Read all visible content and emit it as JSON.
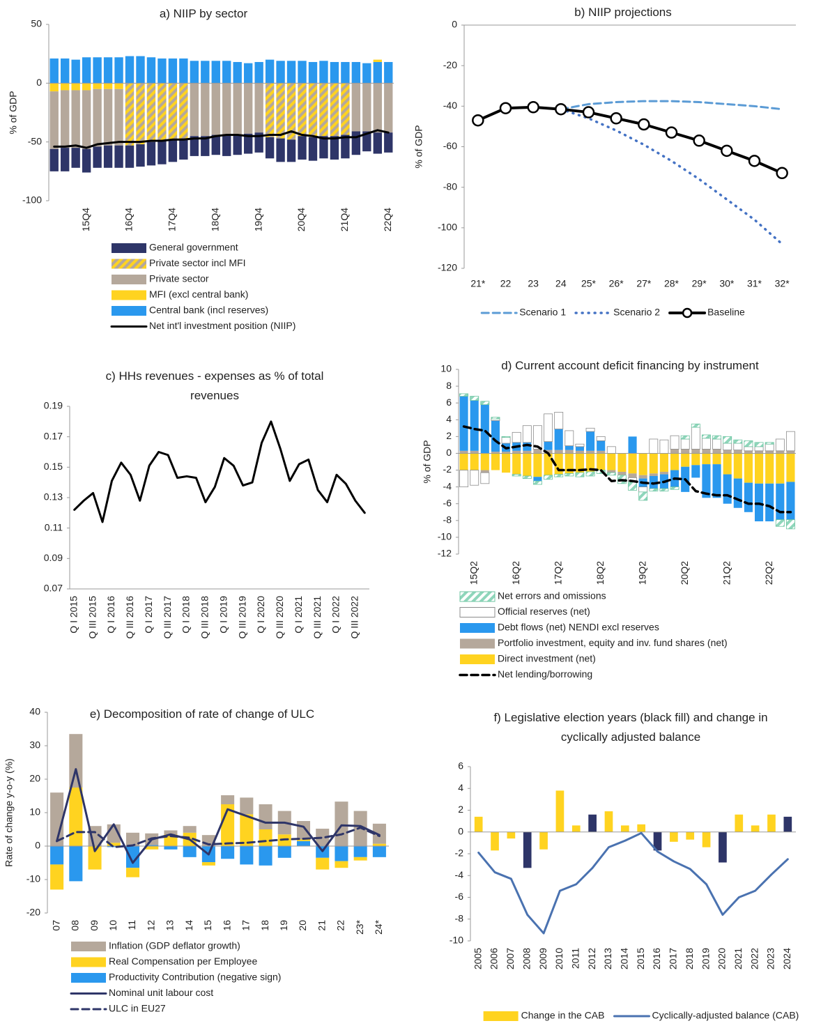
{
  "chart_data": [
    {
      "type": "bar",
      "title": "a) NIIP by sector",
      "y_label": "% of GDP",
      "categories": [
        null,
        null,
        null,
        "15Q4",
        null,
        null,
        null,
        "16Q4",
        null,
        null,
        null,
        "17Q4",
        null,
        null,
        null,
        "18Q4",
        null,
        null,
        null,
        "19Q4",
        null,
        null,
        null,
        "20Q4",
        null,
        null,
        null,
        "21Q4",
        null,
        null,
        null,
        "22Q4"
      ],
      "ylim": [
        -100,
        50
      ],
      "yticks": [
        -100,
        -50,
        0,
        50
      ],
      "series": [
        {
          "name": "General government",
          "type": "bar",
          "color": "#2e3568",
          "values": [
            -19,
            -20,
            -17,
            -20,
            -18,
            -19,
            -19,
            -19,
            -19,
            -20,
            -20,
            -19,
            -18,
            -17,
            -17,
            -17,
            -18,
            -17,
            -17,
            -17,
            -18,
            -20,
            -19,
            -20,
            -20,
            -19,
            -20,
            -20,
            -20,
            -17,
            -18,
            -17
          ]
        },
        {
          "name": "Private sector incl MFI",
          "type": "bar",
          "color": "#b5a89b",
          "hatch_color": "#ffd320",
          "values": [
            null,
            null,
            null,
            null,
            null,
            null,
            null,
            -53,
            -52,
            -50,
            -49,
            -48,
            -47,
            null,
            null,
            null,
            null,
            null,
            null,
            null,
            -46,
            -47,
            -48,
            -45,
            -46,
            -45,
            -45,
            -44,
            null,
            null,
            null,
            null
          ]
        },
        {
          "name": "Private sector",
          "type": "bar",
          "color": "#b5a89b",
          "values": [
            -49,
            -49,
            -49,
            -50,
            -49,
            -48,
            -48,
            null,
            null,
            null,
            null,
            null,
            null,
            -45,
            -45,
            -44,
            -44,
            -44,
            -43,
            -42,
            null,
            null,
            null,
            null,
            null,
            null,
            null,
            null,
            -41,
            -41,
            -42,
            -42
          ]
        },
        {
          "name": "MFI (excl central bank)",
          "type": "bar",
          "color": "#ffd320",
          "values": [
            -7,
            -6,
            -6,
            -6,
            -5,
            -5,
            -5,
            null,
            null,
            null,
            null,
            null,
            null,
            null,
            null,
            null,
            null,
            null,
            null,
            null,
            null,
            null,
            null,
            null,
            null,
            null,
            null,
            null,
            null,
            null,
            2,
            null
          ]
        },
        {
          "name": "Central bank (incl reserves)",
          "type": "bar",
          "color": "#2a98ee",
          "values": [
            21,
            21,
            20,
            22,
            22,
            22,
            22,
            23,
            23,
            22,
            21,
            21,
            21,
            19,
            19,
            19,
            19,
            18,
            17,
            18,
            20,
            19,
            19,
            19,
            18,
            19,
            18,
            18,
            18,
            17,
            18,
            18
          ]
        },
        {
          "name": "Net int'l investment position (NIIP)",
          "type": "line",
          "color": "#000000",
          "line_width": 3,
          "values": [
            -54,
            -54,
            -53,
            -55,
            -52,
            -51,
            -50,
            -50,
            -50,
            -49,
            -49,
            -48,
            -48,
            -47,
            -47,
            -45,
            -44,
            -44,
            -45,
            -45,
            -44,
            -44,
            -41,
            -44,
            -45,
            -47,
            -47,
            -46,
            -46,
            -43,
            -40,
            -42
          ]
        }
      ]
    },
    {
      "type": "line",
      "title": "b) NIIP projections",
      "y_label": "% of GDP",
      "categories": [
        "21*",
        "22",
        "23",
        "24",
        "25*",
        "26*",
        "27*",
        "28*",
        "29*",
        "30*",
        "31*",
        "32*"
      ],
      "ylim": [
        -120,
        0
      ],
      "yticks": [
        -120,
        -100,
        -80,
        -60,
        -40,
        -20,
        0
      ],
      "series": [
        {
          "name": "Scenario 1",
          "type": "line",
          "color": "#5b9bd5",
          "dash": "dashed",
          "line_width": 3,
          "values": [
            null,
            null,
            null,
            -41.5,
            -39,
            -38,
            -37.5,
            -37.5,
            -38,
            -39,
            -40,
            -41.5
          ]
        },
        {
          "name": "Scenario 2",
          "type": "line",
          "color": "#4472c4",
          "dash": "dotted",
          "line_width": 3.5,
          "values": [
            null,
            null,
            null,
            -41.5,
            -46,
            -52,
            -59,
            -67,
            -76,
            -86,
            -96,
            -108
          ]
        },
        {
          "name": "Baseline",
          "type": "line",
          "color": "#000000",
          "line_width": 4,
          "markers": true,
          "values": [
            -47,
            -41,
            -40.5,
            -41.5,
            -43,
            -46,
            -49,
            -53,
            -57,
            -62,
            -67,
            -73
          ]
        }
      ]
    },
    {
      "type": "line",
      "title": "c) HHs revenues - expenses as % of total revenues",
      "categories": [
        "Q I 2015",
        null,
        "Q III 2015",
        null,
        "Q I 2016",
        null,
        "Q III 2016",
        null,
        "Q I 2017",
        null,
        "Q III 2017",
        null,
        "Q I 2018",
        null,
        "Q III 2018",
        null,
        "Q I 2019",
        null,
        "Q III 2019",
        null,
        "Q I 2020",
        null,
        "Q III 2020",
        null,
        "Q I 2021",
        null,
        "Q III 2021",
        null,
        "Q I 2022",
        null,
        "Q III 2022",
        null
      ],
      "ylim": [
        0.07,
        0.19
      ],
      "yticks": [
        0.07,
        0.09,
        0.11,
        0.13,
        0.15,
        0.17,
        0.19
      ],
      "series": [
        {
          "type": "line",
          "color": "#000000",
          "line_width": 3,
          "values": [
            0.122,
            0.128,
            0.133,
            0.114,
            0.141,
            0.153,
            0.145,
            0.128,
            0.151,
            0.16,
            0.158,
            0.143,
            0.144,
            0.143,
            0.127,
            0.137,
            0.156,
            0.151,
            0.138,
            0.14,
            0.166,
            0.18,
            0.162,
            0.141,
            0.152,
            0.155,
            0.135,
            0.127,
            0.145,
            0.139,
            0.128,
            0.12
          ]
        }
      ]
    },
    {
      "type": "bar",
      "title": "d) Current account deficit financing by instrument",
      "y_label": "% of GDP",
      "categories": [
        null,
        "15Q2",
        null,
        null,
        null,
        "16Q2",
        null,
        null,
        null,
        "17Q2",
        null,
        null,
        null,
        "18Q2",
        null,
        null,
        null,
        "19Q2",
        null,
        null,
        null,
        "20Q2",
        null,
        null,
        null,
        "21Q2",
        null,
        null,
        null,
        "22Q2",
        null,
        null
      ],
      "ylim": [
        -12,
        10
      ],
      "yticks": [
        -12,
        -10,
        -8,
        -6,
        -4,
        -2,
        0,
        2,
        4,
        6,
        8,
        10
      ],
      "series": [
        {
          "name": "Net errors and omissions",
          "type": "bar",
          "color": "#ffffff",
          "hatch_color": "#8fd6bb",
          "stroke": "#6cc4a0",
          "values": [
            0.3,
            0.5,
            0.4,
            0.2,
            0.1,
            -0.2,
            -0.3,
            -0.4,
            -0.5,
            -0.3,
            -0.3,
            -0.5,
            -0.5,
            -0.4,
            -0.3,
            -1,
            -1,
            -1,
            -0.3,
            -0.3,
            -0.3,
            0.4,
            0.4,
            0.4,
            0.4,
            0.8,
            0.4,
            0.7,
            0.5,
            0.2,
            -0.8,
            -1.1
          ]
        },
        {
          "name": "Official reserves (net)",
          "type": "bar",
          "color": "#ffffff",
          "stroke": "#8c8c8c",
          "values": [
            -2,
            -1.8,
            -1.3,
            0.2,
            0.7,
            1.2,
            2,
            2.8,
            3.3,
            2,
            1.8,
            0.3,
            0.4,
            0.5,
            0.8,
            0,
            -0.5,
            -0.6,
            1.7,
            1.6,
            1.6,
            1.2,
            2.6,
            1.3,
            1.2,
            0.8,
            0.8,
            0.5,
            0.5,
            0.8,
            1.4,
            2.3
          ]
        },
        {
          "name": "Debt flows (net) NENDI excl reserves",
          "type": "bar",
          "color": "#2a98ee",
          "values": [
            6.5,
            6,
            5.8,
            3.7,
            1,
            1,
            1,
            -0.5,
            1,
            2.5,
            0.5,
            0.5,
            2.3,
            1.2,
            0,
            0,
            2,
            -1,
            -1.5,
            -1.7,
            -2,
            -3,
            -1.5,
            -4,
            -4,
            -3.5,
            -3.5,
            -3.5,
            -4.5,
            -4.5,
            -4.3,
            -4.5
          ]
        },
        {
          "name": "Portfolio investment, equity and inv. fund shares (net)",
          "type": "bar",
          "color": "#b5a89b",
          "values": [
            0.3,
            0.3,
            -0.3,
            0.2,
            0.2,
            0.3,
            0.3,
            0.5,
            0.4,
            0.4,
            0.4,
            0.3,
            0.3,
            0.3,
            -0.3,
            -0.4,
            -0.5,
            -0.4,
            -0.3,
            -0.3,
            0.5,
            0.5,
            0.5,
            0.5,
            0.5,
            0.4,
            0.4,
            0.3,
            0.3,
            0.3,
            0.3,
            0.3
          ]
        },
        {
          "name": "Direct investment (net)",
          "type": "bar",
          "color": "#ffd320",
          "values": [
            -2,
            -2,
            -2,
            -2,
            -2.3,
            -2.5,
            -2.7,
            -2.8,
            -2.6,
            -2.5,
            -2.4,
            -2.3,
            -2.2,
            -2,
            -2,
            -2.2,
            -2.4,
            -2.6,
            -2.4,
            -2.2,
            -2,
            -1.6,
            -1.4,
            -1.3,
            -1.3,
            -2.5,
            -3,
            -3.5,
            -3.6,
            -3.6,
            -3.6,
            -3.4
          ]
        },
        {
          "name": "Net lending/borrowing",
          "type": "line",
          "color": "#000000",
          "dash": "dashed",
          "line_width": 3.5,
          "values": [
            3.2,
            2.9,
            2.7,
            1.5,
            0.6,
            0.8,
            1,
            0.8,
            0,
            -2,
            -2,
            -2,
            -1.9,
            -2,
            -3.3,
            -3.2,
            -3.3,
            -3.5,
            -3.6,
            -3.4,
            -3,
            -3.1,
            -4.5,
            -4.8,
            -5,
            -5,
            -5.5,
            -6,
            -6,
            -6.3,
            -7,
            -7
          ]
        }
      ]
    },
    {
      "type": "bar",
      "title": "e) Decomposition of rate of change of ULC",
      "y_label": "Rate of change y-o-y (%)",
      "categories": [
        "07",
        "08",
        "09",
        "10",
        "11",
        "12",
        "13",
        "14",
        "15",
        "16",
        "17",
        "18",
        "19",
        "20",
        "21",
        "22",
        "23*",
        "24*"
      ],
      "ylim": [
        -20,
        40
      ],
      "yticks": [
        -20,
        -10,
        0,
        10,
        20,
        30,
        40
      ],
      "series": [
        {
          "name": "Inflation (GDP deflator growth)",
          "type": "bar",
          "color": "#b5a89b",
          "values": [
            16,
            16,
            6,
            5.5,
            4,
            3.5,
            1.2,
            2,
            3.3,
            2.7,
            5,
            7.5,
            7,
            5.5,
            5.2,
            13.3,
            10.5,
            6
          ]
        },
        {
          "name": "Real Compensation per Employee",
          "type": "bar",
          "color": "#ffd320",
          "values": [
            -7.5,
            17.5,
            -7,
            1,
            -2.8,
            -1,
            3.5,
            4,
            -1,
            12.5,
            9.5,
            5,
            3.5,
            0.5,
            -3.5,
            -2,
            -1,
            0.7
          ]
        },
        {
          "name": "Productivity Contribution (negative sign)",
          "type": "bar",
          "color": "#2a98ee",
          "values": [
            -5.5,
            -10.5,
            0,
            -0.3,
            -6.5,
            0.3,
            -1,
            -3.3,
            -4.8,
            -3.8,
            -5.5,
            -5.8,
            -3.5,
            1.5,
            -3.5,
            -4.5,
            -3.3,
            -3.3
          ]
        },
        {
          "name": "Nominal unit labour cost",
          "type": "line",
          "color": "#2e3568",
          "line_width": 3,
          "values": [
            1.5,
            23,
            -1.5,
            6.5,
            -5,
            2,
            3.5,
            2,
            -2.5,
            11,
            9,
            7,
            7,
            5.8,
            -1.5,
            6.2,
            6,
            3.3
          ]
        },
        {
          "name": "ULC in EU27",
          "type": "line",
          "color": "#2e3568",
          "dash": "dashed",
          "line_width": 3,
          "values": [
            1.5,
            4.2,
            4.2,
            -0.3,
            0.2,
            2.3,
            3,
            2.5,
            0.5,
            0.8,
            1,
            1.5,
            2,
            2.2,
            2.5,
            3.5,
            5.5,
            3
          ]
        }
      ]
    },
    {
      "type": "bar",
      "title": "f) Legislative election years (black fill) and change in cyclically adjusted balance",
      "categories": [
        "2005",
        "2006",
        "2007",
        "2008",
        "2009",
        "2010",
        "2011",
        "2012",
        "2013",
        "2014",
        "2015",
        "2016",
        "2017",
        "2018",
        "2019",
        "2020",
        "2021",
        "2022",
        "2023",
        "2024"
      ],
      "ylim": [
        -10,
        6
      ],
      "yticks": [
        -10,
        -8,
        -6,
        -4,
        -2,
        0,
        2,
        4,
        6
      ],
      "series": [
        {
          "name": "Change in the CAB",
          "type": "bar",
          "color": "#ffd320",
          "colors": [
            "#ffd320",
            "#ffd320",
            "#ffd320",
            "#2e3568",
            "#ffd320",
            "#ffd320",
            "#ffd320",
            "#2e3568",
            "#ffd320",
            "#ffd320",
            "#ffd320",
            "#2e3568",
            "#ffd320",
            "#ffd320",
            "#ffd320",
            "#2e3568",
            "#ffd320",
            "#ffd320",
            "#ffd320",
            "#2e3568"
          ],
          "values": [
            1.4,
            -1.7,
            -0.6,
            -3.3,
            -1.6,
            3.8,
            0.6,
            1.6,
            1.9,
            0.6,
            0.7,
            -1.7,
            -0.9,
            -0.7,
            -1.4,
            -2.8,
            1.6,
            0.6,
            1.6,
            1.4
          ]
        },
        {
          "name": "Cyclically-adjusted balance (CAB)",
          "type": "line",
          "color": "#4a72b0",
          "line_width": 3,
          "values": [
            -1.9,
            -3.7,
            -4.3,
            -7.6,
            -9.3,
            -5.4,
            -4.8,
            -3.3,
            -1.4,
            -0.8,
            -0.1,
            -1.8,
            -2.7,
            -3.4,
            -4.8,
            -7.6,
            -6,
            -5.4,
            -3.9,
            -2.5
          ]
        }
      ]
    }
  ]
}
